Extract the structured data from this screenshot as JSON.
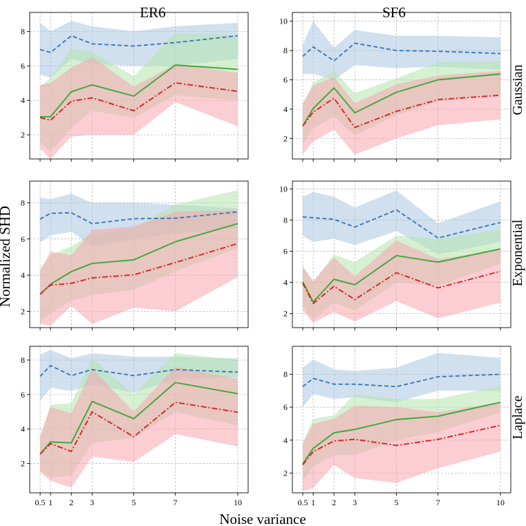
{
  "figure": {
    "xlabel": "Noise variance",
    "ylabel": "Normalized SHD",
    "columns": [
      "ER6",
      "SF6"
    ],
    "rows": [
      "Gaussian",
      "Exponential",
      "Laplace"
    ],
    "colors": {
      "series_blue": "#3a78b8",
      "series_green": "#3aa83a",
      "series_red": "#e02020",
      "band_blue": "#a9c6e2",
      "band_green": "#b5e3ad",
      "band_red": "#f6a6ae",
      "grid": "#b0b0b0"
    }
  },
  "chart_data": [
    {
      "type": "line",
      "panel": "ER6-Gaussian",
      "row": "Gaussian",
      "column": "ER6",
      "x": [
        0.5,
        1,
        2,
        3,
        5,
        7,
        10
      ],
      "xticks": [
        "0.5",
        "1",
        "2",
        "3",
        "5",
        "7",
        "10"
      ],
      "xlim": [
        0,
        10.5
      ],
      "ylim": [
        0.6,
        9.1
      ],
      "yticks": [
        2,
        4,
        6,
        8
      ],
      "series": [
        {
          "name": "blue-dashed",
          "style": "dashed",
          "values": [
            6.95,
            6.78,
            7.75,
            7.28,
            7.15,
            7.35,
            7.75
          ],
          "lower": [
            5.5,
            5.3,
            6.4,
            6.1,
            6.0,
            6.0,
            6.4
          ],
          "upper": [
            8.5,
            8.0,
            8.6,
            8.3,
            8.0,
            8.3,
            8.5
          ]
        },
        {
          "name": "green-solid",
          "style": "solid",
          "values": [
            3.05,
            3.05,
            4.5,
            4.9,
            4.25,
            6.05,
            5.8
          ],
          "lower": [
            1.6,
            1.0,
            2.4,
            3.4,
            3.0,
            4.3,
            4.0
          ],
          "upper": [
            4.8,
            5.3,
            7.0,
            6.8,
            5.4,
            7.9,
            7.8
          ]
        },
        {
          "name": "red-dashdot",
          "style": "dashdot",
          "values": [
            3.0,
            2.85,
            3.95,
            4.15,
            3.4,
            5.02,
            4.52
          ],
          "lower": [
            1.2,
            0.6,
            1.9,
            2.0,
            2.0,
            3.9,
            2.5
          ],
          "upper": [
            4.9,
            5.0,
            5.9,
            6.5,
            4.8,
            6.1,
            5.6
          ]
        }
      ]
    },
    {
      "type": "line",
      "panel": "SF6-Gaussian",
      "row": "Gaussian",
      "column": "SF6",
      "x": [
        0.5,
        1,
        2,
        3,
        5,
        7,
        10
      ],
      "xticks": [
        "0.5",
        "1",
        "2",
        "3",
        "5",
        "7",
        "10"
      ],
      "xlim": [
        0,
        10.5
      ],
      "ylim": [
        0.6,
        10.6
      ],
      "yticks": [
        2,
        4,
        6,
        8,
        10
      ],
      "series": [
        {
          "name": "blue-dashed",
          "style": "dashed",
          "values": [
            7.6,
            8.25,
            7.3,
            8.5,
            8.0,
            7.95,
            7.8
          ],
          "lower": [
            6.4,
            6.4,
            6.0,
            7.0,
            6.8,
            6.9,
            6.7
          ],
          "upper": [
            8.4,
            10.0,
            8.2,
            9.4,
            9.0,
            9.0,
            8.9
          ]
        },
        {
          "name": "green-solid",
          "style": "solid",
          "values": [
            2.85,
            4.05,
            5.45,
            3.75,
            5.15,
            6.0,
            6.4
          ],
          "lower": [
            1.6,
            2.7,
            3.5,
            2.2,
            3.6,
            4.5,
            5.0
          ],
          "upper": [
            4.3,
            5.8,
            6.6,
            5.1,
            6.1,
            7.2,
            7.3
          ]
        },
        {
          "name": "red-dashdot",
          "style": "dashdot",
          "values": [
            2.85,
            3.8,
            4.75,
            2.75,
            3.85,
            4.65,
            4.95
          ],
          "lower": [
            0.9,
            1.8,
            2.6,
            0.9,
            2.0,
            2.9,
            3.3
          ],
          "upper": [
            4.4,
            5.6,
            6.2,
            4.4,
            5.7,
            6.3,
            6.6
          ]
        }
      ]
    },
    {
      "type": "line",
      "panel": "ER6-Exponential",
      "row": "Exponential",
      "column": "ER6",
      "x": [
        0.5,
        1,
        2,
        3,
        5,
        7,
        10
      ],
      "xticks": [
        "0.5",
        "1",
        "2",
        "3",
        "5",
        "7",
        "10"
      ],
      "xlim": [
        0,
        10.5
      ],
      "ylim": [
        1.1,
        9.2
      ],
      "yticks": [
        2,
        4,
        6,
        8
      ],
      "series": [
        {
          "name": "blue-dashed",
          "style": "dashed",
          "values": [
            7.1,
            7.42,
            7.45,
            6.85,
            7.12,
            7.15,
            7.5
          ],
          "lower": [
            5.8,
            6.2,
            6.4,
            5.6,
            6.0,
            6.3,
            6.6
          ],
          "upper": [
            8.3,
            8.2,
            8.5,
            8.0,
            8.0,
            7.9,
            7.7
          ]
        },
        {
          "name": "green-solid",
          "style": "solid",
          "values": [
            2.95,
            3.5,
            4.2,
            4.65,
            4.85,
            5.85,
            6.85
          ],
          "lower": [
            1.4,
            1.9,
            2.6,
            2.9,
            3.2,
            4.2,
            5.5
          ],
          "upper": [
            4.4,
            5.1,
            5.6,
            6.3,
            6.6,
            7.9,
            8.7
          ]
        },
        {
          "name": "red-dashdot",
          "style": "dashdot",
          "values": [
            2.95,
            3.45,
            3.55,
            3.85,
            4.02,
            4.7,
            5.75
          ],
          "lower": [
            1.3,
            1.2,
            2.3,
            1.3,
            2.2,
            2.0,
            3.9
          ],
          "upper": [
            4.2,
            5.3,
            5.1,
            6.5,
            6.7,
            7.5,
            7.6
          ]
        }
      ]
    },
    {
      "type": "line",
      "panel": "SF6-Exponential",
      "row": "Exponential",
      "column": "SF6",
      "x": [
        0.5,
        1,
        2,
        3,
        5,
        7,
        10
      ],
      "xticks": [
        "0.5",
        "1",
        "2",
        "3",
        "5",
        "7",
        "10"
      ],
      "xlim": [
        0,
        10.5
      ],
      "ylim": [
        1.1,
        10.5
      ],
      "yticks": [
        2,
        4,
        6,
        8,
        10
      ],
      "series": [
        {
          "name": "blue-dashed",
          "style": "dashed",
          "values": [
            8.2,
            8.15,
            8.05,
            7.55,
            8.65,
            6.85,
            7.85
          ],
          "lower": [
            7.0,
            6.6,
            6.8,
            6.4,
            7.3,
            5.8,
            6.6
          ],
          "upper": [
            9.5,
            9.8,
            9.5,
            8.8,
            9.9,
            7.8,
            9.2
          ]
        },
        {
          "name": "green-solid",
          "style": "solid",
          "values": [
            4.05,
            2.75,
            4.2,
            3.85,
            5.72,
            5.3,
            6.15
          ],
          "lower": [
            2.5,
            1.6,
            2.7,
            2.2,
            4.0,
            3.8,
            5.2
          ],
          "upper": [
            5.1,
            4.0,
            5.8,
            5.3,
            7.0,
            6.8,
            7.4
          ]
        },
        {
          "name": "red-dashdot",
          "style": "dashdot",
          "values": [
            3.95,
            2.65,
            3.75,
            2.9,
            4.62,
            3.65,
            4.72
          ],
          "lower": [
            2.2,
            1.4,
            2.1,
            1.5,
            2.8,
            1.7,
            2.7
          ],
          "upper": [
            5.0,
            4.1,
            5.6,
            4.4,
            6.7,
            5.5,
            6.1
          ]
        }
      ]
    },
    {
      "type": "line",
      "panel": "ER6-Laplace",
      "row": "Laplace",
      "column": "ER6",
      "x": [
        0.5,
        1,
        2,
        3,
        5,
        7,
        10
      ],
      "xticks": [
        "0.5",
        "1",
        "2",
        "3",
        "5",
        "7",
        "10"
      ],
      "xlim": [
        0,
        10.5
      ],
      "ylim": [
        0.3,
        8.8
      ],
      "yticks": [
        2,
        4,
        6,
        8
      ],
      "series": [
        {
          "name": "blue-dashed",
          "style": "dashed",
          "values": [
            7.05,
            7.68,
            7.1,
            7.45,
            7.1,
            7.45,
            7.3
          ],
          "lower": [
            5.6,
            6.4,
            6.2,
            6.6,
            6.1,
            6.9,
            7.0
          ],
          "upper": [
            8.3,
            8.6,
            8.1,
            8.4,
            8.2,
            8.2,
            8.1
          ]
        },
        {
          "name": "green-solid",
          "style": "solid",
          "values": [
            2.55,
            3.25,
            3.2,
            5.6,
            4.6,
            6.7,
            6.05
          ],
          "lower": [
            1.6,
            1.2,
            1.3,
            3.2,
            3.5,
            5.0,
            4.2
          ],
          "upper": [
            3.4,
            5.4,
            5.5,
            8.1,
            6.0,
            8.4,
            8.0
          ]
        },
        {
          "name": "red-dashdot",
          "style": "dashdot",
          "values": [
            2.55,
            3.15,
            2.7,
            5.0,
            3.55,
            5.55,
            4.98
          ],
          "lower": [
            1.5,
            1.0,
            0.6,
            2.4,
            2.1,
            3.7,
            3.0
          ],
          "upper": [
            3.6,
            5.3,
            4.9,
            7.5,
            5.0,
            7.6,
            6.9
          ]
        }
      ]
    },
    {
      "type": "line",
      "panel": "SF6-Laplace",
      "row": "Laplace",
      "column": "SF6",
      "x": [
        0.5,
        1,
        2,
        3,
        5,
        7,
        10
      ],
      "xticks": [
        "0.5",
        "1",
        "2",
        "3",
        "5",
        "7",
        "10"
      ],
      "xlim": [
        0,
        10.5
      ],
      "ylim": [
        0.8,
        9.7
      ],
      "yticks": [
        2,
        4,
        6,
        8
      ],
      "series": [
        {
          "name": "blue-dashed",
          "style": "dashed",
          "values": [
            7.25,
            7.75,
            7.4,
            7.4,
            7.25,
            7.85,
            8.0
          ],
          "lower": [
            6.0,
            6.8,
            6.5,
            6.6,
            6.3,
            7.0,
            7.0
          ],
          "upper": [
            8.4,
            8.9,
            8.3,
            8.2,
            8.4,
            9.3,
            9.0
          ]
        },
        {
          "name": "green-solid",
          "style": "solid",
          "values": [
            2.55,
            3.5,
            4.45,
            4.65,
            5.25,
            5.45,
            6.3
          ],
          "lower": [
            1.5,
            2.4,
            3.1,
            3.1,
            4.0,
            4.5,
            5.7
          ],
          "upper": [
            3.8,
            5.3,
            5.5,
            6.8,
            6.5,
            6.5,
            7.3
          ]
        },
        {
          "name": "red-dashdot",
          "style": "dashdot",
          "values": [
            2.5,
            3.3,
            3.95,
            4.05,
            3.68,
            4.05,
            4.9
          ],
          "lower": [
            0.9,
            1.1,
            2.5,
            1.7,
            1.4,
            2.3,
            3.3
          ],
          "upper": [
            3.8,
            5.0,
            5.3,
            6.1,
            6.0,
            5.7,
            6.3
          ]
        }
      ]
    }
  ]
}
